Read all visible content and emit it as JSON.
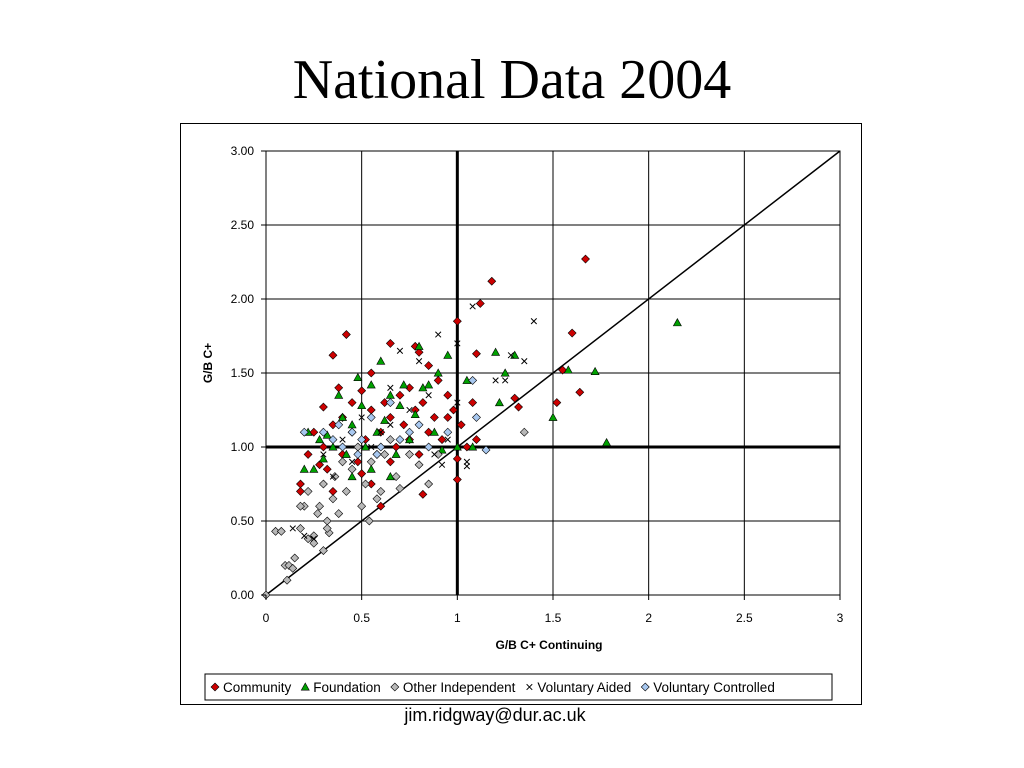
{
  "slide": {
    "title": "National Data 2004",
    "footer": "jim.ridgway@dur.ac.uk"
  },
  "chart_data": {
    "type": "scatter",
    "title": "",
    "xlabel": "G/B C+ Continuing",
    "ylabel": "G/B C+",
    "xlim": [
      0,
      3
    ],
    "ylim": [
      0,
      3
    ],
    "x_ticks": [
      "0",
      "0.5",
      "1",
      "1.5",
      "2",
      "2.5",
      "3"
    ],
    "y_ticks": [
      "0.00",
      "0.50",
      "1.00",
      "1.50",
      "2.00",
      "2.50",
      "3.00"
    ],
    "grid": true,
    "legend_position": "bottom",
    "reference_lines": [
      {
        "kind": "diagonal",
        "from": [
          0,
          0
        ],
        "to": [
          3,
          3
        ]
      },
      {
        "kind": "vertical",
        "x": 1
      },
      {
        "kind": "horizontal",
        "y": 1
      }
    ],
    "series": [
      {
        "name": "Community",
        "marker": "diamond",
        "color": "#cc0000",
        "points": [
          [
            0.35,
            1.62
          ],
          [
            0.42,
            1.76
          ],
          [
            0.65,
            1.7
          ],
          [
            0.78,
            1.68
          ],
          [
            1,
            1.85
          ],
          [
            1.12,
            1.97
          ],
          [
            1.18,
            2.12
          ],
          [
            1.67,
            2.27
          ],
          [
            1.6,
            1.77
          ],
          [
            1.64,
            1.37
          ],
          [
            1.55,
            1.52
          ],
          [
            1.52,
            1.3
          ],
          [
            1.3,
            1.33
          ],
          [
            1.32,
            1.27
          ],
          [
            1.1,
            1.63
          ],
          [
            0.8,
            1.64
          ],
          [
            0.55,
            1.5
          ],
          [
            0.5,
            1.38
          ],
          [
            0.38,
            1.4
          ],
          [
            0.3,
            1.27
          ],
          [
            0.25,
            1.1
          ],
          [
            0.18,
            0.75
          ],
          [
            0.18,
            0.7
          ],
          [
            0.22,
            0.95
          ],
          [
            0.28,
            0.88
          ],
          [
            0.3,
            1.0
          ],
          [
            0.32,
            0.85
          ],
          [
            0.35,
            1.15
          ],
          [
            0.4,
            1.2
          ],
          [
            0.45,
            1.1
          ],
          [
            0.48,
            0.9
          ],
          [
            0.52,
            1.05
          ],
          [
            0.55,
            1.25
          ],
          [
            0.58,
            0.95
          ],
          [
            0.6,
            1.1
          ],
          [
            0.62,
            1.3
          ],
          [
            0.65,
            1.2
          ],
          [
            0.68,
            1.0
          ],
          [
            0.7,
            1.35
          ],
          [
            0.72,
            1.15
          ],
          [
            0.75,
            1.05
          ],
          [
            0.78,
            1.25
          ],
          [
            0.8,
            0.95
          ],
          [
            0.82,
            1.3
          ],
          [
            0.85,
            1.1
          ],
          [
            0.88,
            1.2
          ],
          [
            0.9,
            1.45
          ],
          [
            0.92,
            1.05
          ],
          [
            0.95,
            1.35
          ],
          [
            0.98,
            1.25
          ],
          [
            1.0,
            0.92
          ],
          [
            1.0,
            0.78
          ],
          [
            1.02,
            1.15
          ],
          [
            1.05,
            1.0
          ],
          [
            1.08,
            1.3
          ],
          [
            1.1,
            1.05
          ],
          [
            0.6,
            0.6
          ],
          [
            0.55,
            0.75
          ],
          [
            0.82,
            0.68
          ],
          [
            0.4,
            0.95
          ],
          [
            0.45,
            1.3
          ],
          [
            0.65,
            0.9
          ],
          [
            0.75,
            1.4
          ],
          [
            0.85,
            1.55
          ],
          [
            0.95,
            1.2
          ],
          [
            0.5,
            0.82
          ],
          [
            0.35,
            0.7
          ]
        ]
      },
      {
        "name": "Foundation",
        "marker": "triangle",
        "color": "#00a000",
        "points": [
          [
            2.15,
            1.84
          ],
          [
            1.78,
            1.03
          ],
          [
            1.72,
            1.51
          ],
          [
            1.58,
            1.52
          ],
          [
            1.5,
            1.2
          ],
          [
            1.3,
            1.62
          ],
          [
            1.25,
            1.5
          ],
          [
            1.22,
            1.3
          ],
          [
            1.2,
            1.64
          ],
          [
            1.05,
            1.45
          ],
          [
            1.08,
            1.0
          ],
          [
            1.0,
            1.0
          ],
          [
            0.95,
            1.62
          ],
          [
            0.9,
            1.5
          ],
          [
            0.85,
            1.42
          ],
          [
            0.8,
            1.68
          ],
          [
            0.75,
            1.05
          ],
          [
            0.7,
            1.28
          ],
          [
            0.65,
            1.35
          ],
          [
            0.6,
            1.58
          ],
          [
            0.58,
            1.1
          ],
          [
            0.55,
            1.42
          ],
          [
            0.52,
            1.0
          ],
          [
            0.5,
            1.28
          ],
          [
            0.48,
            1.47
          ],
          [
            0.45,
            1.15
          ],
          [
            0.42,
            0.95
          ],
          [
            0.4,
            1.2
          ],
          [
            0.38,
            1.35
          ],
          [
            0.35,
            1.0
          ],
          [
            0.32,
            1.08
          ],
          [
            0.3,
            0.92
          ],
          [
            0.28,
            1.05
          ],
          [
            0.25,
            0.85
          ],
          [
            0.22,
            1.1
          ],
          [
            0.2,
            0.85
          ],
          [
            0.62,
            1.18
          ],
          [
            0.68,
            0.95
          ],
          [
            0.72,
            1.42
          ],
          [
            0.78,
            1.22
          ],
          [
            0.82,
            1.4
          ],
          [
            0.88,
            1.1
          ],
          [
            0.92,
            0.98
          ],
          [
            0.55,
            0.85
          ],
          [
            0.45,
            0.8
          ],
          [
            0.65,
            0.8
          ]
        ]
      },
      {
        "name": "Other Independent",
        "marker": "diamond",
        "color": "#b8b8b8",
        "points": [
          [
            0.0,
            0.0
          ],
          [
            0.05,
            0.43
          ],
          [
            0.08,
            0.43
          ],
          [
            0.1,
            0.2
          ],
          [
            0.11,
            0.1
          ],
          [
            0.12,
            0.2
          ],
          [
            0.14,
            0.18
          ],
          [
            0.15,
            0.25
          ],
          [
            0.18,
            0.45
          ],
          [
            0.2,
            0.6
          ],
          [
            0.22,
            0.38
          ],
          [
            0.25,
            0.4
          ],
          [
            0.27,
            0.55
          ],
          [
            0.28,
            0.6
          ],
          [
            0.3,
            0.75
          ],
          [
            0.32,
            0.5
          ],
          [
            0.33,
            0.42
          ],
          [
            0.35,
            0.65
          ],
          [
            0.36,
            0.8
          ],
          [
            0.38,
            0.55
          ],
          [
            0.4,
            0.9
          ],
          [
            0.42,
            0.7
          ],
          [
            0.45,
            0.85
          ],
          [
            0.48,
            1.0
          ],
          [
            0.5,
            0.6
          ],
          [
            0.52,
            0.75
          ],
          [
            0.55,
            0.9
          ],
          [
            0.58,
            0.65
          ],
          [
            0.6,
            0.7
          ],
          [
            0.62,
            0.95
          ],
          [
            0.65,
            1.05
          ],
          [
            0.68,
            0.8
          ],
          [
            0.7,
            0.72
          ],
          [
            0.75,
            0.95
          ],
          [
            0.8,
            0.88
          ],
          [
            0.85,
            0.75
          ],
          [
            0.9,
            0.95
          ],
          [
            1.35,
            1.1
          ],
          [
            0.54,
            0.5
          ],
          [
            0.3,
            0.3
          ],
          [
            0.25,
            0.35
          ],
          [
            0.18,
            0.6
          ],
          [
            0.22,
            0.7
          ],
          [
            0.32,
            0.45
          ]
        ]
      },
      {
        "name": "Voluntary Aided",
        "marker": "x",
        "color": "#000000",
        "points": [
          [
            1.4,
            1.85
          ],
          [
            1.08,
            1.95
          ],
          [
            0.9,
            1.76
          ],
          [
            1.0,
            1.7
          ],
          [
            0.7,
            1.65
          ],
          [
            0.8,
            1.58
          ],
          [
            1.28,
            1.62
          ],
          [
            1.35,
            1.58
          ],
          [
            1.2,
            1.45
          ],
          [
            1.25,
            1.45
          ],
          [
            1.0,
            1.3
          ],
          [
            1.05,
            0.9
          ],
          [
            1.05,
            0.87
          ],
          [
            0.92,
            0.88
          ],
          [
            0.88,
            0.95
          ],
          [
            0.6,
            1.1
          ],
          [
            0.5,
            1.2
          ],
          [
            0.4,
            1.05
          ],
          [
            0.3,
            0.95
          ],
          [
            0.25,
            0.38
          ],
          [
            0.2,
            0.4
          ],
          [
            0.14,
            0.45
          ],
          [
            0.45,
            0.9
          ],
          [
            0.55,
            1.0
          ],
          [
            0.65,
            1.15
          ],
          [
            0.75,
            1.25
          ],
          [
            0.85,
            1.35
          ],
          [
            0.95,
            1.05
          ],
          [
            0.35,
            0.8
          ],
          [
            0.65,
            1.4
          ]
        ]
      },
      {
        "name": "Voluntary Controlled",
        "marker": "diamond",
        "color": "#a8c8f0",
        "points": [
          [
            1.08,
            1.45
          ],
          [
            1.15,
            0.98
          ],
          [
            1.1,
            1.2
          ],
          [
            0.95,
            1.1
          ],
          [
            0.8,
            1.15
          ],
          [
            0.7,
            1.05
          ],
          [
            0.6,
            1.0
          ],
          [
            0.5,
            1.05
          ],
          [
            0.45,
            1.1
          ],
          [
            0.4,
            1.0
          ],
          [
            0.35,
            1.05
          ],
          [
            0.3,
            1.1
          ],
          [
            0.2,
            1.1
          ],
          [
            0.55,
            1.2
          ],
          [
            0.65,
            1.3
          ],
          [
            0.75,
            1.1
          ],
          [
            0.85,
            1.0
          ],
          [
            0.58,
            0.95
          ],
          [
            0.48,
            0.95
          ],
          [
            0.38,
            1.15
          ]
        ]
      }
    ]
  }
}
